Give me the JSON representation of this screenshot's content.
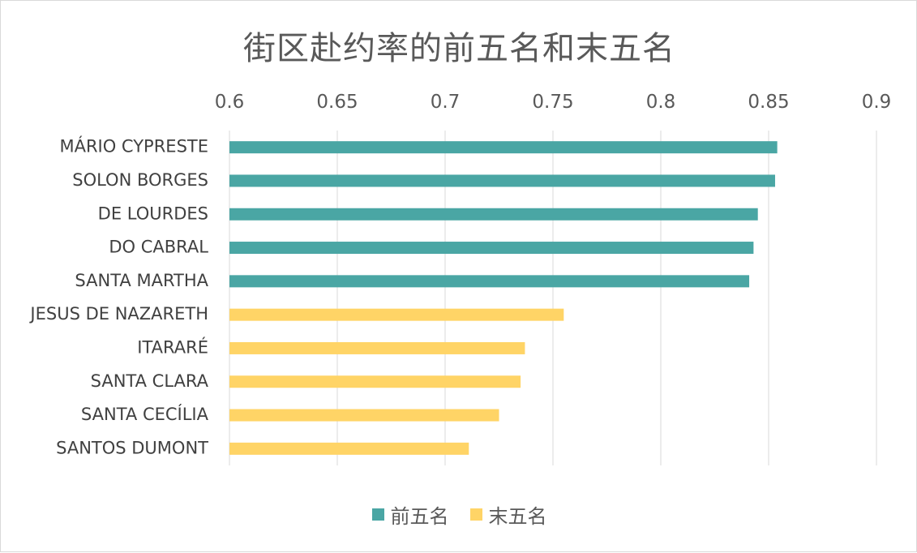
{
  "chart_data": {
    "type": "bar",
    "orientation": "horizontal",
    "title": "街区赴约率的前五名和末五名",
    "xlabel": "",
    "ylabel": "",
    "xlim": [
      0.6,
      0.9
    ],
    "x_ticks": [
      "0.6",
      "0.65",
      "0.7",
      "0.75",
      "0.8",
      "0.85",
      "0.9"
    ],
    "x_tick_values": [
      0.6,
      0.65,
      0.7,
      0.75,
      0.8,
      0.85,
      0.9
    ],
    "x_axis_position": "top",
    "grid": true,
    "legend_position": "bottom",
    "categories": [
      "MÁRIO CYPRESTE",
      "SOLON BORGES",
      "DE LOURDES",
      "DO CABRAL",
      "SANTA MARTHA",
      "JESUS DE NAZARETH",
      "ITARARÉ",
      "SANTA CLARA",
      "SANTA CECÍLIA",
      "SANTOS DUMONT"
    ],
    "series": [
      {
        "name": "前五名",
        "color": "#4aa6a4",
        "values": [
          0.854,
          0.853,
          0.845,
          0.843,
          0.841,
          null,
          null,
          null,
          null,
          null
        ]
      },
      {
        "name": "末五名",
        "color": "#ffd466",
        "values": [
          null,
          null,
          null,
          null,
          null,
          0.755,
          0.737,
          0.735,
          0.725,
          0.711
        ]
      }
    ]
  }
}
